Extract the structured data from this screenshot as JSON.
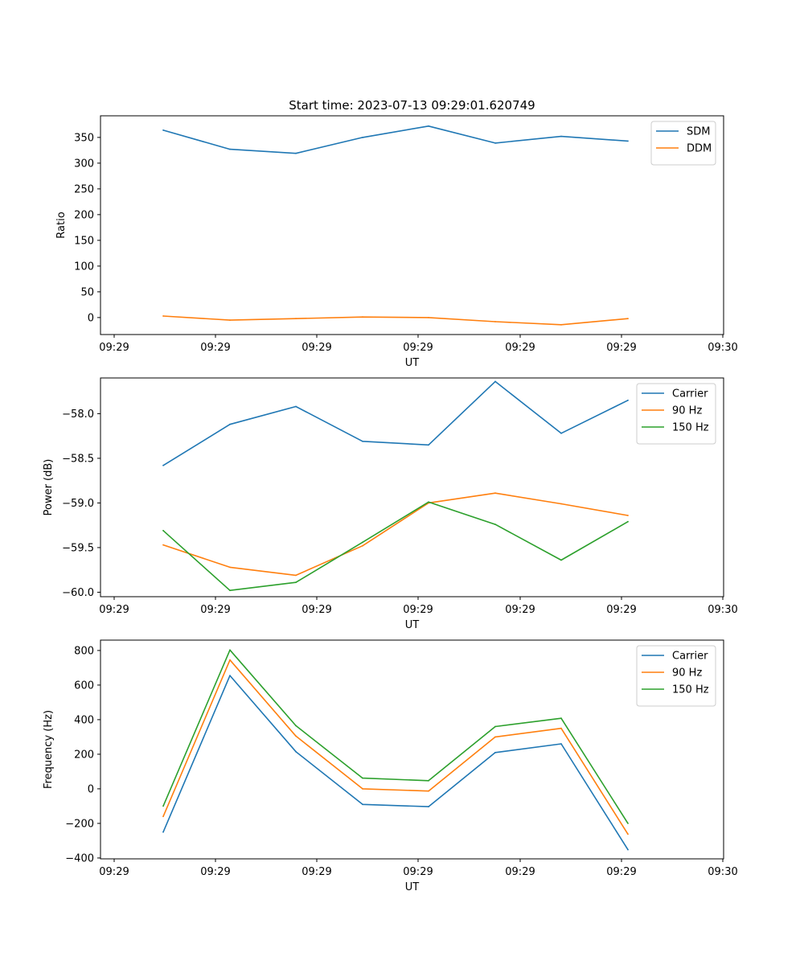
{
  "title": "Start time: 2023-07-13 09:29:01.620749",
  "chart_data": [
    {
      "type": "line",
      "title": "Start time: 2023-07-13 09:29:01.620749",
      "xlabel": "UT",
      "ylabel": "Ratio",
      "x_tick_labels": [
        "09:29",
        "09:29",
        "09:29",
        "09:29",
        "09:29",
        "09:29",
        "09:30"
      ],
      "y_ticks": [
        0,
        50,
        100,
        150,
        200,
        250,
        300,
        350
      ],
      "ylim": [
        -33,
        392
      ],
      "legend_position": "top-right",
      "series": [
        {
          "name": "SDM",
          "color": "#1f77b4",
          "values": [
            364,
            327,
            319,
            350,
            372,
            339,
            352,
            343
          ]
        },
        {
          "name": "DDM",
          "color": "#ff7f0e",
          "values": [
            3,
            -5,
            -2,
            1,
            0,
            -8,
            -14,
            -2
          ]
        }
      ]
    },
    {
      "type": "line",
      "title": "",
      "xlabel": "UT",
      "ylabel": "Power (dB)",
      "x_tick_labels": [
        "09:29",
        "09:29",
        "09:29",
        "09:29",
        "09:29",
        "09:29",
        "09:30"
      ],
      "y_ticks": [
        -60.0,
        -59.5,
        -59.0,
        -58.5,
        -58.0
      ],
      "y_tick_labels": [
        "−60.0",
        "−59.5",
        "−59.0",
        "−58.5",
        "−58.0"
      ],
      "ylim": [
        -60.05,
        -57.6
      ],
      "legend_position": "top-right",
      "series": [
        {
          "name": "Carrier",
          "color": "#1f77b4",
          "values": [
            -58.58,
            -58.12,
            -57.92,
            -58.31,
            -58.35,
            -57.64,
            -58.22,
            -57.85
          ]
        },
        {
          "name": "90 Hz",
          "color": "#ff7f0e",
          "values": [
            -59.47,
            -59.72,
            -59.81,
            -59.48,
            -59.0,
            -58.89,
            -59.01,
            -59.14
          ]
        },
        {
          "name": "150 Hz",
          "color": "#2ca02c",
          "values": [
            -59.31,
            -59.98,
            -59.89,
            -59.44,
            -58.99,
            -59.24,
            -59.64,
            -59.21
          ]
        }
      ]
    },
    {
      "type": "line",
      "title": "",
      "xlabel": "UT",
      "ylabel": "Frequency (Hz)",
      "x_tick_labels": [
        "09:29",
        "09:29",
        "09:29",
        "09:29",
        "09:29",
        "09:29",
        "09:30"
      ],
      "y_ticks": [
        -400,
        -200,
        0,
        200,
        400,
        600,
        800
      ],
      "y_tick_labels": [
        "−400",
        "−200",
        "0",
        "200",
        "400",
        "600",
        "800"
      ],
      "ylim": [
        -405,
        860
      ],
      "legend_position": "top-right",
      "series": [
        {
          "name": "Carrier",
          "color": "#1f77b4",
          "values": [
            -250,
            655,
            215,
            -90,
            -103,
            210,
            260,
            -352
          ]
        },
        {
          "name": "90 Hz",
          "color": "#ff7f0e",
          "values": [
            -160,
            745,
            305,
            0,
            -13,
            300,
            350,
            -262
          ]
        },
        {
          "name": "150 Hz",
          "color": "#2ca02c",
          "values": [
            -100,
            803,
            365,
            62,
            47,
            360,
            408,
            -200
          ]
        }
      ]
    }
  ]
}
